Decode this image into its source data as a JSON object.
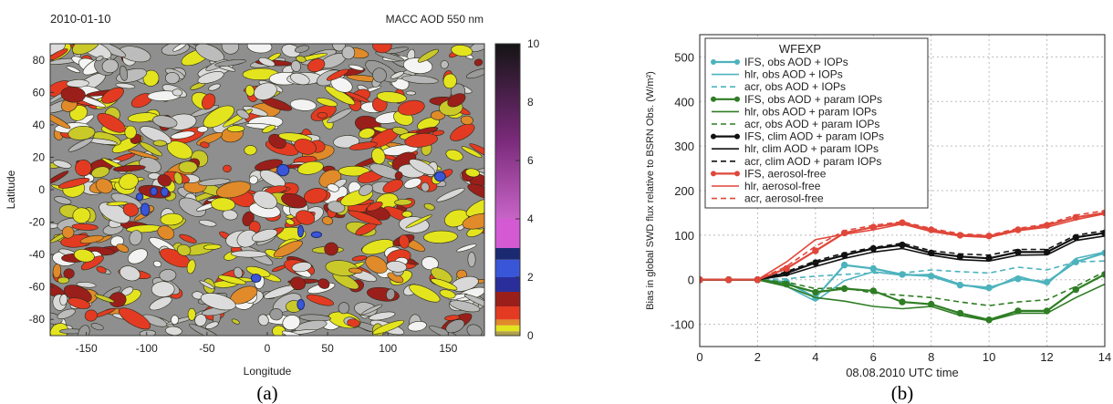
{
  "chart_data": [
    {
      "type": "heatmap",
      "date": "2010-01-10",
      "title": "MACC AOD 550 nm",
      "xlabel": "Longitude",
      "ylabel": "Latitude",
      "xlim": [
        -180,
        180
      ],
      "ylim": [
        -90,
        90
      ],
      "xticks": [
        -150,
        -100,
        -50,
        0,
        50,
        100,
        150
      ],
      "yticks": [
        80,
        60,
        40,
        20,
        0,
        -20,
        -40,
        -60,
        -80
      ],
      "colorbar": {
        "ticks": [
          0,
          2,
          4,
          6,
          8,
          10
        ],
        "segments": [
          {
            "from": 0.0,
            "to": 0.15,
            "color": "#b0a04a"
          },
          {
            "from": 0.15,
            "to": 0.35,
            "color": "#e4e41e"
          },
          {
            "from": 0.35,
            "to": 0.55,
            "color": "#e08a2a"
          },
          {
            "from": 0.55,
            "to": 1.0,
            "color": "#e33b22"
          },
          {
            "from": 1.0,
            "to": 1.5,
            "color": "#9a1f1a"
          },
          {
            "from": 1.5,
            "to": 2.0,
            "color": "#2a2e9a"
          },
          {
            "from": 2.0,
            "to": 2.6,
            "color": "#3a56d8"
          },
          {
            "from": 2.6,
            "to": 3.0,
            "color": "#1b2a70"
          },
          {
            "from": 3.0,
            "to": 4.0,
            "color": "#d35ad3"
          },
          {
            "from": 4.0,
            "to": 10.0,
            "color": "gradient-purple-black"
          }
        ]
      },
      "caption": "(a)"
    },
    {
      "type": "line",
      "xlabel": "08.08.2010 UTC time",
      "ylabel": "Bias in global SWD flux relative to BSRN Obs. (W/m²)",
      "xlim": [
        0,
        14
      ],
      "ylim": [
        -150,
        550
      ],
      "xticks": [
        0,
        2,
        4,
        6,
        8,
        10,
        12,
        14
      ],
      "yticks": [
        -100,
        0,
        100,
        200,
        300,
        400,
        500
      ],
      "grid": true,
      "legend": {
        "title": "WFEXP",
        "placement": "top-left"
      },
      "x": [
        0,
        1,
        2,
        3,
        4,
        5,
        6,
        7,
        8,
        9,
        10,
        11,
        12,
        13,
        14
      ],
      "series": [
        {
          "name": "IFS, obs AOD + IOPs",
          "color": "#4db3bd",
          "style": "marker",
          "values": [
            0,
            0,
            0,
            -5,
            -40,
            33,
            25,
            12,
            8,
            -12,
            -18,
            2,
            -5,
            40,
            60
          ]
        },
        {
          "name": "hlr, obs AOD + IOPs",
          "color": "#4db3bd",
          "style": "solid",
          "values": [
            0,
            0,
            0,
            -15,
            -48,
            -2,
            18,
            10,
            12,
            -10,
            -22,
            8,
            -10,
            48,
            62
          ]
        },
        {
          "name": "acr, obs AOD + IOPs",
          "color": "#4db3bd",
          "style": "dashed",
          "values": [
            0,
            0,
            0,
            2,
            8,
            12,
            15,
            15,
            22,
            18,
            15,
            28,
            22,
            40,
            42
          ]
        },
        {
          "name": "IFS, obs AOD + param IOPs",
          "color": "#2f7d24",
          "style": "marker",
          "values": [
            0,
            0,
            0,
            -10,
            -28,
            -20,
            -25,
            -50,
            -55,
            -75,
            -90,
            -70,
            -70,
            -22,
            12
          ]
        },
        {
          "name": "hlr, obs AOD + param IOPs",
          "color": "#2f7d24",
          "style": "solid",
          "values": [
            0,
            0,
            0,
            -15,
            -40,
            -48,
            -60,
            -65,
            -60,
            -80,
            -92,
            -75,
            -75,
            -40,
            -10
          ]
        },
        {
          "name": "acr, obs AOD + param IOPs",
          "color": "#2f7d24",
          "style": "dashed",
          "values": [
            0,
            0,
            0,
            -5,
            -20,
            -18,
            -30,
            -35,
            -40,
            -50,
            -58,
            -50,
            -45,
            -15,
            18
          ]
        },
        {
          "name": "IFS, clim AOD + param IOPs",
          "color": "#111111",
          "style": "marker",
          "values": [
            0,
            0,
            0,
            15,
            38,
            55,
            70,
            78,
            60,
            52,
            48,
            62,
            62,
            95,
            105
          ]
        },
        {
          "name": "hlr, clim AOD + param IOPs",
          "color": "#111111",
          "style": "solid",
          "values": [
            0,
            0,
            0,
            10,
            30,
            48,
            62,
            70,
            55,
            45,
            42,
            55,
            56,
            88,
            98
          ]
        },
        {
          "name": "acr, clim AOD + param IOPs",
          "color": "#111111",
          "style": "dashed",
          "values": [
            0,
            0,
            0,
            18,
            42,
            60,
            72,
            82,
            65,
            58,
            55,
            68,
            68,
            100,
            110
          ]
        },
        {
          "name": "IFS, aerosol-free",
          "color": "#e0473a",
          "style": "marker",
          "values": [
            0,
            0,
            0,
            25,
            65,
            105,
            118,
            128,
            112,
            100,
            98,
            112,
            122,
            140,
            150
          ]
        },
        {
          "name": "hlr, aerosol-free",
          "color": "#e0473a",
          "style": "solid",
          "values": [
            0,
            0,
            0,
            40,
            90,
            102,
            112,
            125,
            108,
            98,
            95,
            110,
            118,
            135,
            148
          ]
        },
        {
          "name": "acr, aerosol-free",
          "color": "#e0473a",
          "style": "dashed",
          "values": [
            0,
            0,
            0,
            30,
            75,
            110,
            122,
            130,
            115,
            103,
            100,
            115,
            125,
            145,
            155
          ]
        }
      ],
      "caption": "(b)"
    }
  ]
}
